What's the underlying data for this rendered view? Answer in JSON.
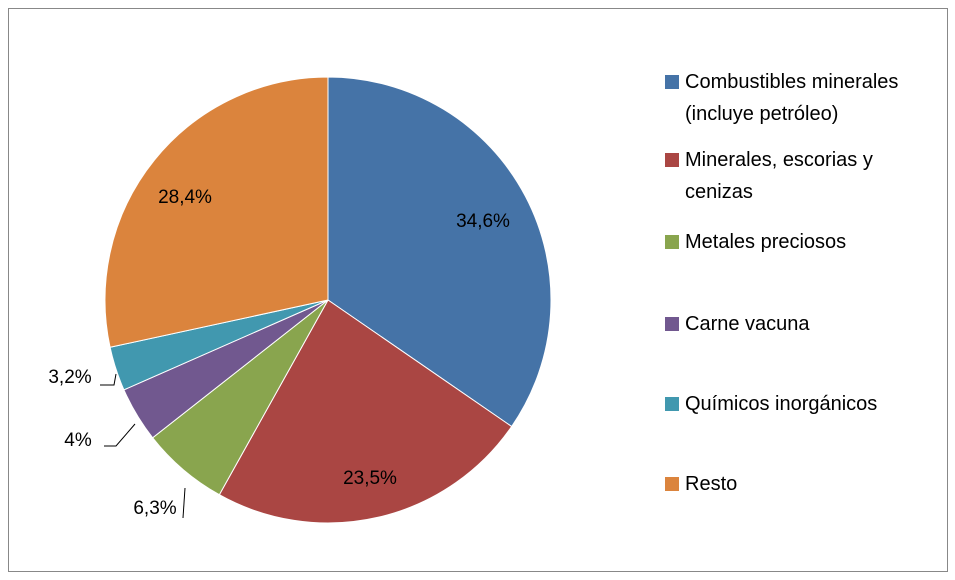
{
  "chart_data": {
    "type": "pie",
    "categories": [
      "Combustibles minerales (incluye petróleo)",
      "Minerales, escorias y cenizas",
      "Metales preciosos",
      "Carne vacuna",
      "Químicos inorgánicos",
      "Resto"
    ],
    "values": [
      34.6,
      23.5,
      6.3,
      4,
      3.2,
      28.4
    ],
    "value_labels": [
      "34,6%",
      "23,5%",
      "6,3%",
      "4%",
      "3,2%",
      "28,4%"
    ],
    "colors": [
      "#4573a7",
      "#aa4643",
      "#89a54e",
      "#71588f",
      "#4198af",
      "#db843d"
    ],
    "legend": "right"
  }
}
